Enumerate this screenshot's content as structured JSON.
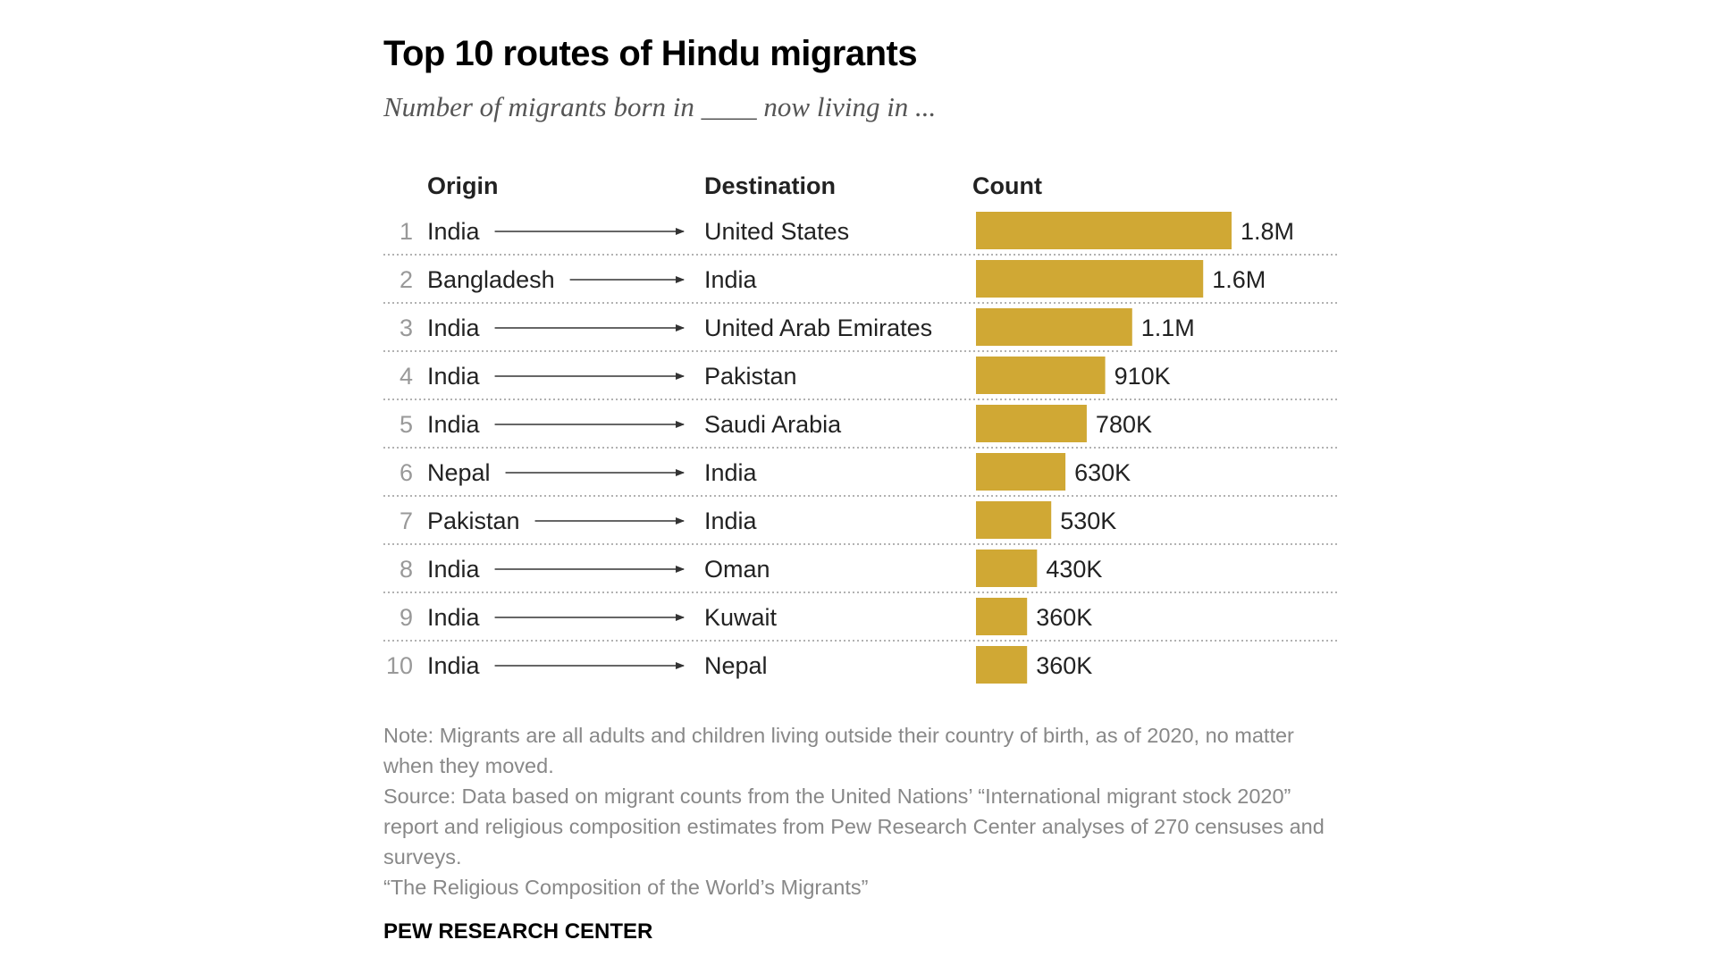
{
  "title": "Top 10 routes of Hindu migrants",
  "subtitle": "Number of migrants born in ____ now living in ...",
  "columns": {
    "origin": "Origin",
    "destination": "Destination",
    "count": "Count"
  },
  "colors": {
    "bar": "#D0A834",
    "rank": "#999999",
    "text": "#222222",
    "divider": "#999999",
    "arrow": "#333333"
  },
  "chart_data": {
    "type": "bar",
    "orientation": "horizontal",
    "title": "Top 10 routes of Hindu migrants",
    "subtitle": "Number of migrants born in ____ now living in ...",
    "xlabel": "Count",
    "ylabel": "",
    "xlim": [
      0,
      1800000
    ],
    "rows": [
      {
        "rank": "1",
        "origin": "India",
        "destination": "United States",
        "value": 1800000,
        "label": "1.8M"
      },
      {
        "rank": "2",
        "origin": "Bangladesh",
        "destination": "India",
        "value": 1600000,
        "label": "1.6M"
      },
      {
        "rank": "3",
        "origin": "India",
        "destination": "United Arab Emirates",
        "value": 1100000,
        "label": "1.1M"
      },
      {
        "rank": "4",
        "origin": "India",
        "destination": "Pakistan",
        "value": 910000,
        "label": "910K"
      },
      {
        "rank": "5",
        "origin": "India",
        "destination": "Saudi Arabia",
        "value": 780000,
        "label": "780K"
      },
      {
        "rank": "6",
        "origin": "Nepal",
        "destination": "India",
        "value": 630000,
        "label": "630K"
      },
      {
        "rank": "7",
        "origin": "Pakistan",
        "destination": "India",
        "value": 530000,
        "label": "530K"
      },
      {
        "rank": "8",
        "origin": "India",
        "destination": "Oman",
        "value": 430000,
        "label": "430K"
      },
      {
        "rank": "9",
        "origin": "India",
        "destination": "Kuwait",
        "value": 360000,
        "label": "360K"
      },
      {
        "rank": "10",
        "origin": "India",
        "destination": "Nepal",
        "value": 360000,
        "label": "360K"
      }
    ]
  },
  "notes": {
    "note": "Note: Migrants are all adults and children living outside their country of birth, as of 2020, no matter when they moved.",
    "source": "Source: Data based on migrant counts from the United Nations’ “International migrant stock 2020” report and religious composition estimates from Pew Research Center analyses of 270 censuses and surveys.",
    "report": "“The Religious Composition of the World’s Migrants”"
  },
  "brand": "PEW RESEARCH CENTER"
}
